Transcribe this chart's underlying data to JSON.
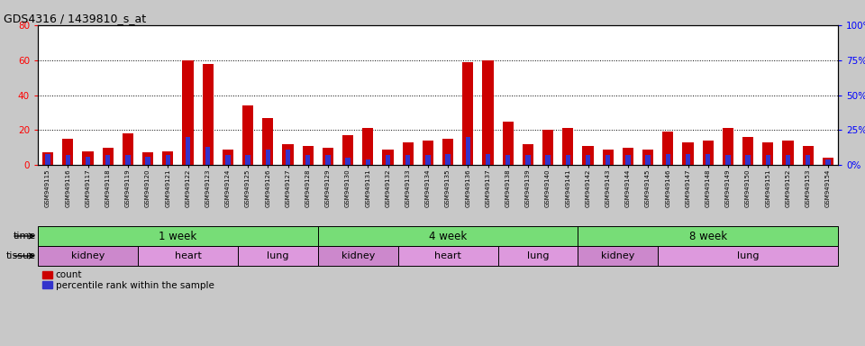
{
  "title": "GDS4316 / 1439810_s_at",
  "samples": [
    "GSM949115",
    "GSM949116",
    "GSM949117",
    "GSM949118",
    "GSM949119",
    "GSM949120",
    "GSM949121",
    "GSM949122",
    "GSM949123",
    "GSM949124",
    "GSM949125",
    "GSM949126",
    "GSM949127",
    "GSM949128",
    "GSM949129",
    "GSM949130",
    "GSM949131",
    "GSM949132",
    "GSM949133",
    "GSM949134",
    "GSM949135",
    "GSM949136",
    "GSM949137",
    "GSM949138",
    "GSM949139",
    "GSM949140",
    "GSM949141",
    "GSM949142",
    "GSM949143",
    "GSM949144",
    "GSM949145",
    "GSM949146",
    "GSM949147",
    "GSM949148",
    "GSM949149",
    "GSM949150",
    "GSM949151",
    "GSM949152",
    "GSM949153",
    "GSM949154"
  ],
  "counts": [
    7,
    15,
    8,
    10,
    18,
    7,
    8,
    60,
    58,
    9,
    34,
    27,
    12,
    11,
    10,
    17,
    21,
    9,
    13,
    14,
    15,
    59,
    60,
    25,
    12,
    20,
    21,
    11,
    9,
    10,
    9,
    19,
    13,
    14,
    21,
    16,
    13,
    14,
    11,
    4
  ],
  "percentiles": [
    8,
    7,
    6,
    7,
    7,
    6,
    7,
    20,
    13,
    7,
    7,
    11,
    11,
    7,
    7,
    5,
    4,
    7,
    7,
    7,
    8,
    20,
    8,
    7,
    7,
    7,
    7,
    7,
    7,
    7,
    7,
    8,
    8,
    8,
    7,
    7,
    7,
    7,
    7,
    4
  ],
  "left_ylim": [
    0,
    80
  ],
  "right_ylim": [
    0,
    100
  ],
  "left_yticks": [
    0,
    20,
    40,
    60,
    80
  ],
  "right_yticks": [
    0,
    25,
    50,
    75,
    100
  ],
  "right_yticklabels": [
    "0%",
    "25%",
    "50%",
    "75%",
    "100%"
  ],
  "bar_color_red": "#cc0000",
  "bar_color_blue": "#3333cc",
  "fig_bg": "#c8c8c8",
  "plot_bg": "#ffffff",
  "time_groups": [
    {
      "label": "1 week",
      "start": 0,
      "end": 14,
      "color": "#77dd77"
    },
    {
      "label": "4 week",
      "start": 14,
      "end": 27,
      "color": "#77dd77"
    },
    {
      "label": "8 week",
      "start": 27,
      "end": 40,
      "color": "#77dd77"
    }
  ],
  "tissue_groups": [
    {
      "label": "kidney",
      "start": 0,
      "end": 5,
      "color": "#cc88cc"
    },
    {
      "label": "heart",
      "start": 5,
      "end": 10,
      "color": "#dd99dd"
    },
    {
      "label": "lung",
      "start": 10,
      "end": 14,
      "color": "#dd99dd"
    },
    {
      "label": "kidney",
      "start": 14,
      "end": 18,
      "color": "#cc88cc"
    },
    {
      "label": "heart",
      "start": 18,
      "end": 23,
      "color": "#dd99dd"
    },
    {
      "label": "lung",
      "start": 23,
      "end": 27,
      "color": "#dd99dd"
    },
    {
      "label": "kidney",
      "start": 27,
      "end": 31,
      "color": "#cc88cc"
    },
    {
      "label": "lung",
      "start": 31,
      "end": 40,
      "color": "#dd99dd"
    }
  ]
}
